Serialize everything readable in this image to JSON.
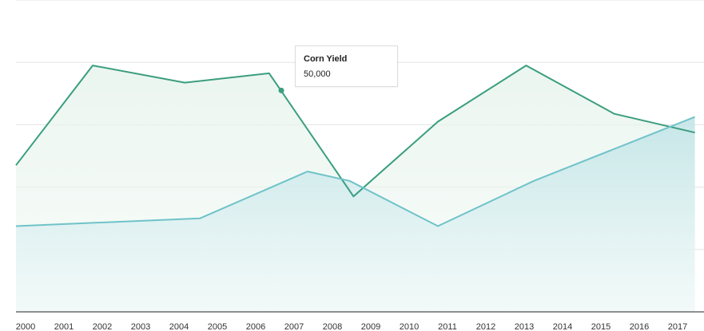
{
  "chart_data": {
    "type": "area",
    "categories": [
      "2000",
      "2001",
      "2002",
      "2003",
      "2004",
      "2005",
      "2006",
      "2007",
      "2008",
      "2009",
      "2010",
      "2011",
      "2012",
      "2013",
      "2014",
      "2015",
      "2016",
      "2017"
    ],
    "ylim": [
      0,
      100000
    ],
    "grid": true,
    "series": [
      {
        "name": "Corn Yield",
        "color": "#3a9e7f",
        "fill": "#eaf5ef",
        "points": [
          {
            "x": 2000.0,
            "y": 47000
          },
          {
            "x": 2002.0,
            "y": 79000
          },
          {
            "x": 2004.4,
            "y": 73500
          },
          {
            "x": 2006.6,
            "y": 76500
          },
          {
            "x": 2008.8,
            "y": 37000
          },
          {
            "x": 2011.0,
            "y": 61000
          },
          {
            "x": 2013.3,
            "y": 79000
          },
          {
            "x": 2015.6,
            "y": 63500
          },
          {
            "x": 2017.7,
            "y": 57500
          }
        ]
      },
      {
        "name": "",
        "color": "#6fc3c9",
        "fill": "#c8e7ea",
        "points": [
          {
            "x": 2000.0,
            "y": 27500
          },
          {
            "x": 2004.8,
            "y": 30000
          },
          {
            "x": 2007.6,
            "y": 45000
          },
          {
            "x": 2008.7,
            "y": 42000
          },
          {
            "x": 2011.0,
            "y": 27500
          },
          {
            "x": 2013.5,
            "y": 42000
          },
          {
            "x": 2017.7,
            "y": 62500
          }
        ]
      }
    ],
    "highlight": {
      "series": "Corn Yield",
      "x": 2007.0,
      "y": 71000
    }
  },
  "tooltip": {
    "title": "Corn Yield",
    "value": "50,000"
  }
}
